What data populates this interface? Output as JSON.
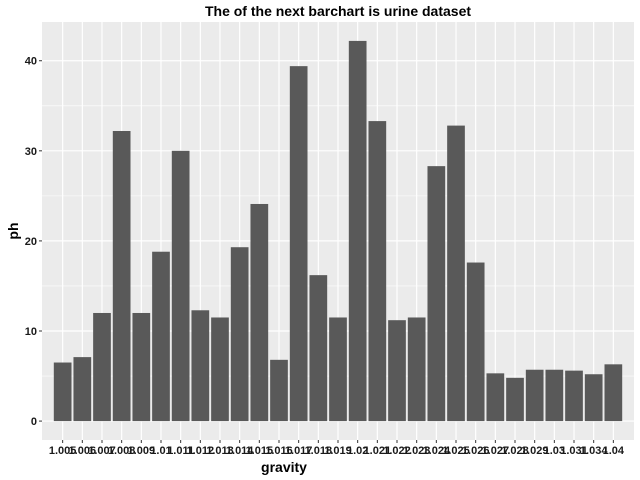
{
  "chart_data": {
    "type": "bar",
    "title": "The of the next barchart is urine dataset",
    "xlabel": "gravity",
    "ylabel": "ph",
    "ylim": [
      -2.1,
      44.3
    ],
    "yticks": [
      0,
      10,
      20,
      30,
      40
    ],
    "grid": true,
    "categories": [
      "1.005",
      "1.006",
      "1.007",
      "1.008",
      "1.009",
      "1.01",
      "1.011",
      "1.012",
      "1.013",
      "1.014",
      "1.015",
      "1.016",
      "1.017",
      "1.018",
      "1.019",
      "1.02",
      "1.021",
      "1.022",
      "1.023",
      "1.024",
      "1.025",
      "1.026",
      "1.027",
      "1.028",
      "1.029",
      "1.03",
      "1.031",
      "1.034",
      "1.04"
    ],
    "values": [
      6.5,
      7.1,
      12.0,
      32.2,
      12.0,
      18.8,
      30.0,
      12.3,
      11.5,
      19.3,
      24.1,
      6.8,
      39.4,
      16.2,
      11.5,
      42.2,
      33.3,
      11.2,
      11.5,
      28.3,
      32.8,
      17.6,
      5.3,
      4.8,
      5.7,
      5.7,
      5.6,
      5.2,
      6.3
    ],
    "bar_color": "#595959",
    "panel_color": "#ebebeb",
    "grid_color": "#ffffff"
  }
}
